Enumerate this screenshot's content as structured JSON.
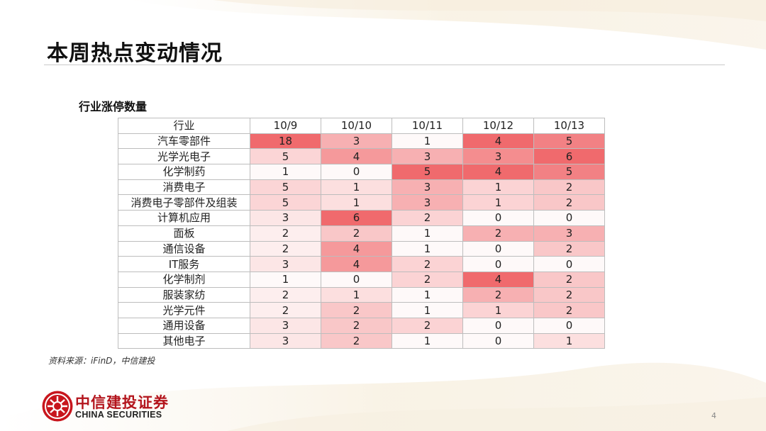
{
  "slide": {
    "title": "本周热点变动情况",
    "subtitle": "行业涨停数量",
    "source": "资料来源：iFinD，中信建投",
    "page_number": "4"
  },
  "brand": {
    "name_cn": "中信建投证券",
    "name_en": "CHINA SECURITIES",
    "color": "#b3141c"
  },
  "table": {
    "header": [
      "行业",
      "10/9",
      "10/10",
      "10/11",
      "10/12",
      "10/13"
    ],
    "rows": [
      {
        "name": "汽车零部件",
        "values": [
          18,
          3,
          1,
          4,
          5
        ]
      },
      {
        "name": "光学光电子",
        "values": [
          5,
          4,
          3,
          3,
          6
        ]
      },
      {
        "name": "化学制药",
        "values": [
          1,
          0,
          5,
          4,
          5
        ]
      },
      {
        "name": "消费电子",
        "values": [
          5,
          1,
          3,
          1,
          2
        ]
      },
      {
        "name": "消费电子零部件及组装",
        "values": [
          5,
          1,
          3,
          1,
          2
        ]
      },
      {
        "name": "计算机应用",
        "values": [
          3,
          6,
          2,
          0,
          0
        ]
      },
      {
        "name": "面板",
        "values": [
          2,
          2,
          1,
          2,
          3
        ]
      },
      {
        "name": "通信设备",
        "values": [
          2,
          4,
          1,
          0,
          2
        ]
      },
      {
        "name": "IT服务",
        "values": [
          3,
          4,
          2,
          0,
          0
        ]
      },
      {
        "name": "化学制剂",
        "values": [
          1,
          0,
          2,
          4,
          2
        ]
      },
      {
        "name": "服装家纺",
        "values": [
          2,
          1,
          1,
          2,
          2
        ]
      },
      {
        "name": "光学元件",
        "values": [
          2,
          2,
          1,
          1,
          2
        ]
      },
      {
        "name": "通用设备",
        "values": [
          3,
          2,
          2,
          0,
          0
        ]
      },
      {
        "name": "其他电子",
        "values": [
          3,
          2,
          1,
          0,
          1
        ]
      }
    ],
    "heat_color_high": "#f06a6d",
    "heat_color_low": "#ffffff"
  }
}
